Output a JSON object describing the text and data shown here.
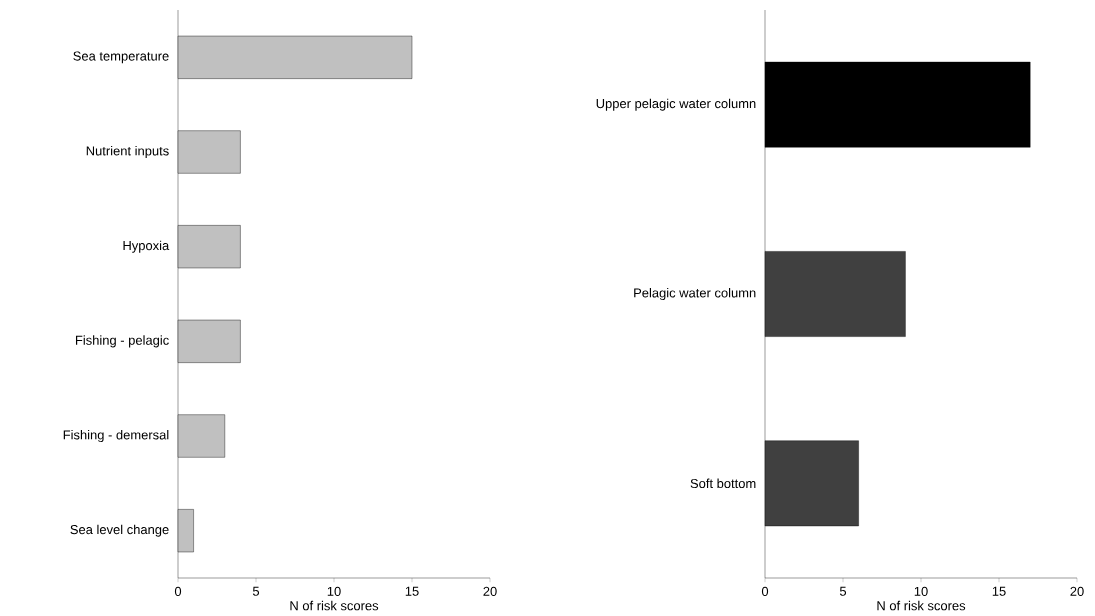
{
  "chart_data": [
    {
      "type": "bar",
      "orientation": "horizontal",
      "categories": [
        "Sea temperature",
        "Nutrient inputs",
        "Hypoxia",
        "Fishing - pelagic",
        "Fishing - demersal",
        "Sea level change"
      ],
      "values": [
        15,
        4,
        4,
        4,
        3,
        1
      ],
      "colors": [
        "#c0c0c0",
        "#c0c0c0",
        "#c0c0c0",
        "#c0c0c0",
        "#c0c0c0",
        "#c0c0c0"
      ],
      "xlim": [
        0,
        20
      ],
      "xticks": [
        0,
        5,
        10,
        15,
        20
      ],
      "xlabel": "N of risk scores",
      "grid": false
    },
    {
      "type": "bar",
      "orientation": "horizontal",
      "categories": [
        "Upper pelagic water column",
        "Pelagic water column",
        "Soft bottom"
      ],
      "values": [
        17,
        9,
        6
      ],
      "colors": [
        "#000000",
        "#404040",
        "#404040"
      ],
      "xlim": [
        0,
        20
      ],
      "xticks": [
        0,
        5,
        10,
        15,
        20
      ],
      "xlabel": "N of risk scores",
      "grid": false
    }
  ]
}
